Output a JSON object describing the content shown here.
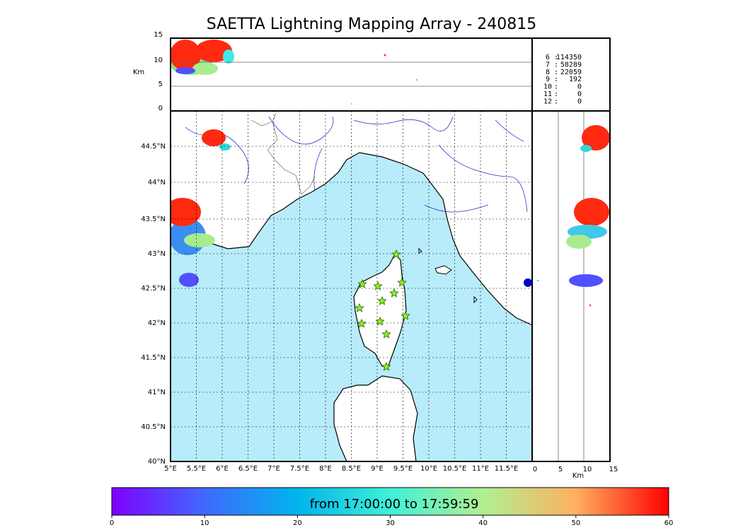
{
  "title": "SAETTA Lightning Mapping Array - 240815",
  "top_panel": {
    "ylabel": "Km",
    "yticks": [
      "0",
      "5",
      "10",
      "15"
    ]
  },
  "map": {
    "lon_ticks": [
      "5°E",
      "5.5°E",
      "6°E",
      "6.5°E",
      "7°E",
      "7.5°E",
      "8°E",
      "8.5°E",
      "9°E",
      "9.5°E",
      "10°E",
      "10.5°E",
      "11°E",
      "11.5°E"
    ],
    "lat_ticks": [
      "40°N",
      "40.5°N",
      "41°N",
      "41.5°N",
      "42°N",
      "42.5°N",
      "43°N",
      "43.5°N",
      "44°N",
      "44.5°N"
    ],
    "sea_color": "#b8ecfa",
    "land_color": "#ffffff",
    "river_color": "#3333cc",
    "station_color": "#8cf01e"
  },
  "side_panel": {
    "xlabel": "Km",
    "xticks": [
      "0",
      "5",
      "10",
      "15"
    ]
  },
  "station_counts": [
    {
      "stations": "6",
      "count": "114350",
      "color": "#000000"
    },
    {
      "stations": "7",
      "count": "58289",
      "color": "#ff0000"
    },
    {
      "stations": "8",
      "count": "22059",
      "color": "#000000"
    },
    {
      "stations": "9",
      "count": "192",
      "color": "#000000"
    },
    {
      "stations": "10",
      "count": "0",
      "color": "#000000"
    },
    {
      "stations": "11",
      "count": "0",
      "color": "#000000"
    },
    {
      "stations": "12",
      "count": "0",
      "color": "#000000"
    }
  ],
  "colorbar": {
    "label": "from 17:00:00 to 17:59:59",
    "ticks": [
      "0",
      "10",
      "20",
      "30",
      "40",
      "50",
      "60"
    ],
    "colors": [
      "#7f00ff",
      "#4169ff",
      "#00b4eb",
      "#40f0d8",
      "#b0f090",
      "#ffb060",
      "#ff0000"
    ]
  }
}
